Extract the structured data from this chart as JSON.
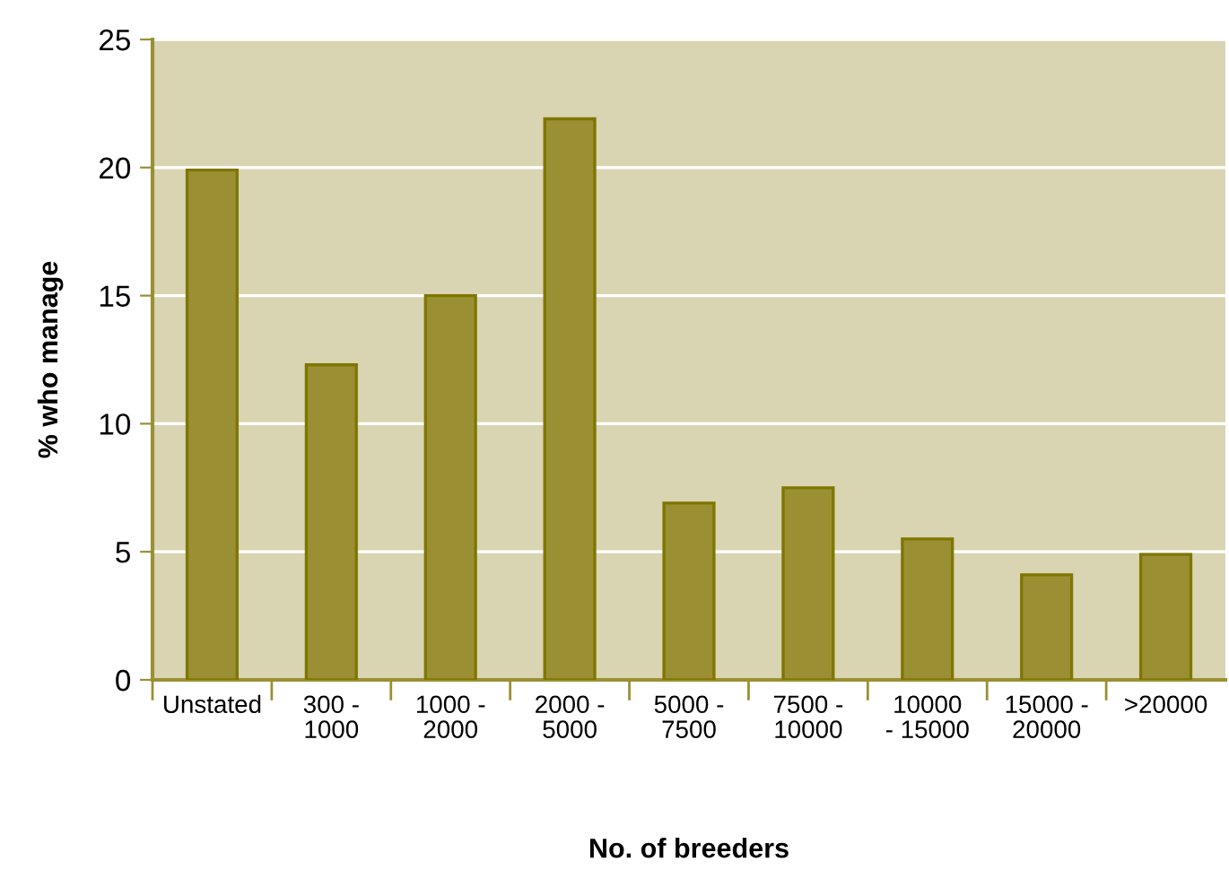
{
  "chart_data": {
    "type": "bar",
    "xlabel": "No. of breeders",
    "ylabel": "% who manage",
    "categories": [
      "Unstated",
      "300 -\n1000",
      "1000 -\n2000",
      "2000 -\n5000",
      "5000 -\n7500",
      "7500 -\n10000",
      "10000\n- 15000",
      "15000 -\n20000",
      ">20000"
    ],
    "values": [
      19.9,
      12.3,
      15.0,
      21.9,
      6.9,
      7.5,
      5.5,
      4.1,
      4.9
    ],
    "color": "#9a9033",
    "ylim": [
      0,
      25
    ],
    "yticks": [
      0,
      5,
      10,
      15,
      20,
      25
    ],
    "grid": "y",
    "legend": false
  }
}
